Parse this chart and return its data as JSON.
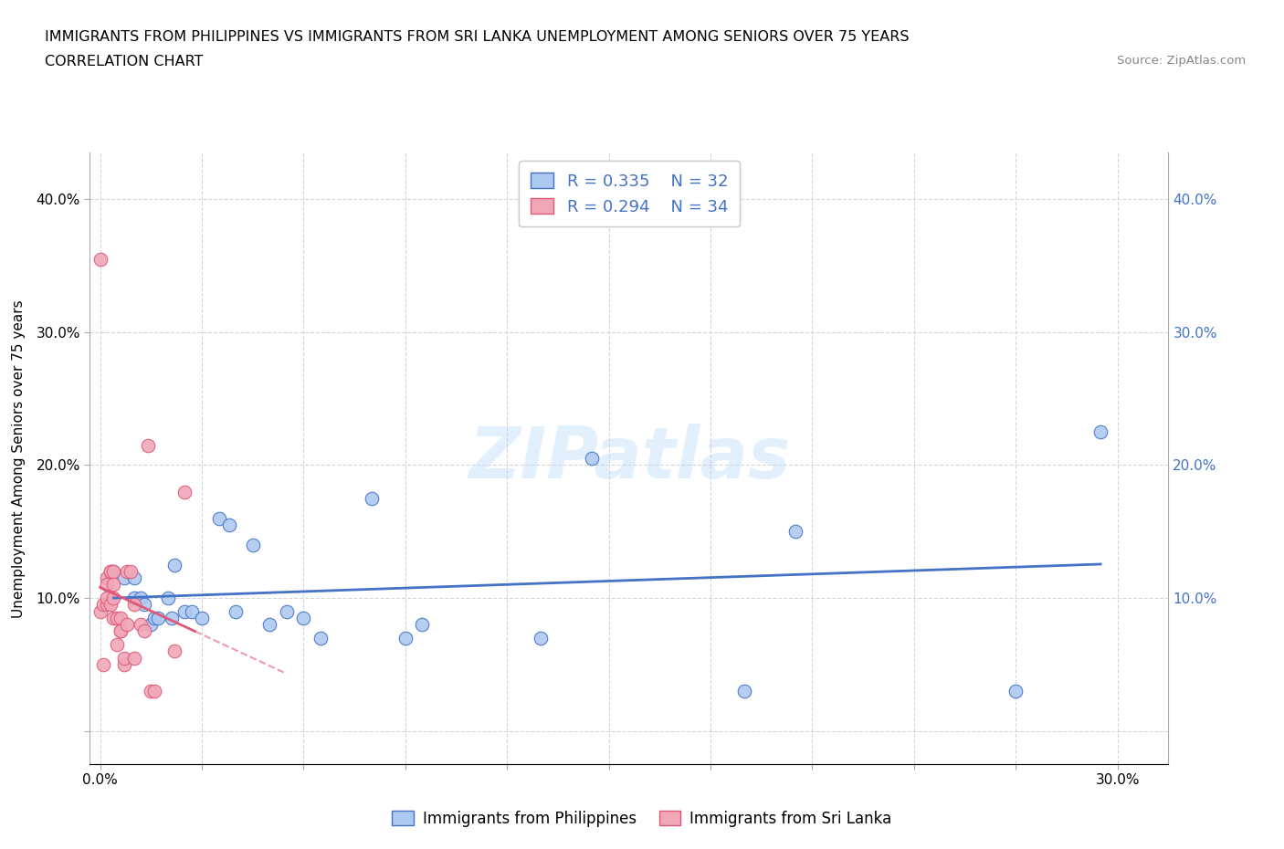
{
  "title_line1": "IMMIGRANTS FROM PHILIPPINES VS IMMIGRANTS FROM SRI LANKA UNEMPLOYMENT AMONG SENIORS OVER 75 YEARS",
  "title_line2": "CORRELATION CHART",
  "source": "Source: ZipAtlas.com",
  "ylabel": "Unemployment Among Seniors over 75 years",
  "watermark": "ZIPatlas",
  "legend1_label": "Immigrants from Philippines",
  "legend2_label": "Immigrants from Sri Lanka",
  "legend_r1": "R = 0.335",
  "legend_n1": "N = 32",
  "legend_r2": "R = 0.294",
  "legend_n2": "N = 34",
  "xlim": [
    -0.003,
    0.315
  ],
  "ylim": [
    -0.025,
    0.435
  ],
  "xticks": [
    0.0,
    0.03,
    0.06,
    0.09,
    0.12,
    0.15,
    0.18,
    0.21,
    0.24,
    0.27,
    0.3
  ],
  "yticks": [
    0.0,
    0.1,
    0.2,
    0.3,
    0.4
  ],
  "color_philippines": "#adc9f0",
  "color_sri_lanka": "#f0a8b8",
  "color_line_philippines": "#4472c4",
  "color_line_sri_lanka": "#e05878",
  "color_right_axis": "#4472c4",
  "philippines_x": [
    0.004,
    0.007,
    0.01,
    0.01,
    0.012,
    0.013,
    0.015,
    0.016,
    0.017,
    0.02,
    0.021,
    0.022,
    0.025,
    0.027,
    0.03,
    0.035,
    0.038,
    0.04,
    0.045,
    0.05,
    0.055,
    0.06,
    0.065,
    0.08,
    0.09,
    0.095,
    0.13,
    0.145,
    0.19,
    0.205,
    0.27,
    0.295
  ],
  "philippines_y": [
    0.12,
    0.115,
    0.1,
    0.115,
    0.1,
    0.095,
    0.08,
    0.085,
    0.085,
    0.1,
    0.085,
    0.125,
    0.09,
    0.09,
    0.085,
    0.16,
    0.155,
    0.09,
    0.14,
    0.08,
    0.09,
    0.085,
    0.07,
    0.175,
    0.07,
    0.08,
    0.07,
    0.205,
    0.03,
    0.15,
    0.03,
    0.225
  ],
  "sri_lanka_x": [
    0.0,
    0.0,
    0.001,
    0.001,
    0.002,
    0.002,
    0.002,
    0.002,
    0.003,
    0.003,
    0.003,
    0.004,
    0.004,
    0.004,
    0.004,
    0.005,
    0.005,
    0.006,
    0.006,
    0.006,
    0.007,
    0.007,
    0.008,
    0.008,
    0.009,
    0.01,
    0.01,
    0.012,
    0.013,
    0.014,
    0.015,
    0.016,
    0.022,
    0.025
  ],
  "sri_lanka_y": [
    0.355,
    0.09,
    0.095,
    0.05,
    0.095,
    0.115,
    0.11,
    0.1,
    0.095,
    0.12,
    0.12,
    0.1,
    0.12,
    0.11,
    0.085,
    0.085,
    0.065,
    0.085,
    0.075,
    0.075,
    0.05,
    0.055,
    0.08,
    0.12,
    0.12,
    0.095,
    0.055,
    0.08,
    0.075,
    0.215,
    0.03,
    0.03,
    0.06,
    0.18
  ],
  "sri_lanka_trend_x": [
    0.0,
    0.025
  ],
  "philippines_trend_x": [
    0.004,
    0.295
  ]
}
